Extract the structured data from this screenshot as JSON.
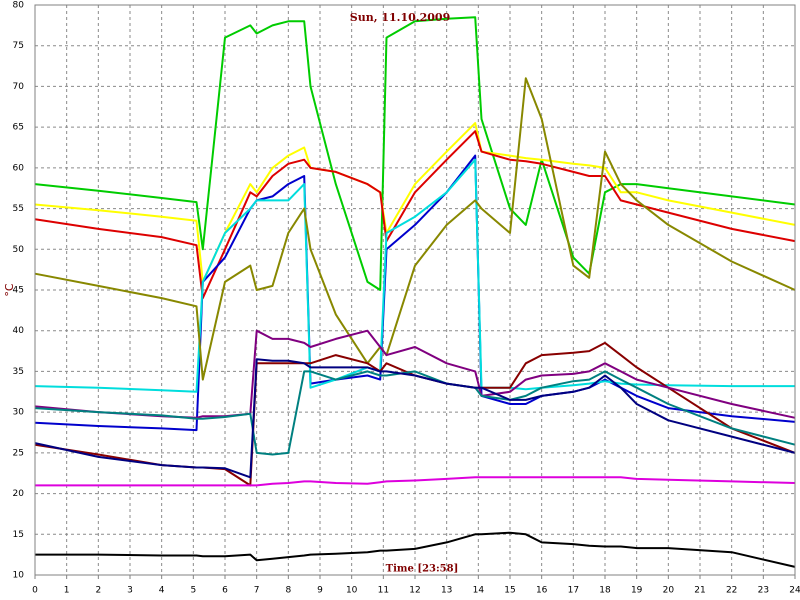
{
  "chart_data": {
    "type": "line",
    "title": "Sun, 11.10.2009",
    "xlabel": "Time [23:58]",
    "ylabel": "°C",
    "xlim": [
      0,
      24
    ],
    "xticks": [
      0,
      1,
      2,
      3,
      4,
      5,
      6,
      7,
      8,
      9,
      10,
      11,
      12,
      13,
      14,
      15,
      16,
      17,
      18,
      19,
      20,
      21,
      22,
      23,
      24
    ],
    "ylim": [
      10,
      80
    ],
    "yticks": [
      10,
      15,
      20,
      25,
      30,
      35,
      40,
      45,
      50,
      55,
      60,
      65,
      70,
      75,
      80
    ],
    "grid": true,
    "x": [
      0,
      2,
      4,
      5.1,
      5.3,
      6,
      6.8,
      7,
      7.5,
      8,
      8.5,
      8.7,
      9.5,
      10.5,
      10.9,
      11.1,
      12,
      13,
      13.9,
      14.1,
      15,
      15.5,
      16,
      17,
      17.5,
      18,
      18.5,
      19,
      20,
      22,
      24
    ],
    "series": [
      {
        "color": "#00cc00",
        "values": [
          58,
          57.2,
          56.3,
          55.8,
          50,
          76,
          77.5,
          76.5,
          77.5,
          78,
          78,
          70,
          58,
          46,
          45,
          76,
          78,
          78.3,
          78.5,
          66,
          55,
          53,
          61,
          49,
          47,
          57,
          58,
          58,
          57.5,
          56.5,
          55.5
        ]
      },
      {
        "color": "#ffff00",
        "values": [
          55.5,
          54.8,
          54,
          53.5,
          46,
          52,
          58,
          57,
          60,
          61.5,
          62.5,
          60,
          59.5,
          58,
          57,
          52,
          58,
          62,
          65.5,
          62,
          61.5,
          61.2,
          61,
          60.5,
          60.3,
          60,
          57,
          57,
          56,
          54.5,
          53
        ]
      },
      {
        "color": "#dd0000",
        "values": [
          53.7,
          52.5,
          51.5,
          50.5,
          44,
          50,
          57,
          56.5,
          59,
          60.5,
          61,
          60,
          59.5,
          58,
          57,
          51,
          57,
          61,
          64.5,
          62,
          61,
          60.8,
          60.5,
          59.5,
          59,
          59,
          56,
          55.5,
          54.5,
          52.5,
          51
        ]
      },
      {
        "color": "#0000cc",
        "values": [
          28.7,
          28.3,
          28,
          27.8,
          46,
          49,
          55,
          56,
          56.5,
          58,
          59,
          33.5,
          34,
          34.5,
          34,
          50,
          53,
          57,
          61.5,
          32,
          31,
          31,
          32,
          32.5,
          33,
          34,
          33,
          32,
          30.5,
          29.5,
          28.8
        ]
      },
      {
        "color": "#00dddd",
        "values": [
          33.2,
          33,
          32.7,
          32.5,
          46,
          52,
          55,
          56,
          56,
          56,
          58,
          33,
          34,
          35.5,
          35,
          52,
          54,
          57,
          61,
          33,
          33,
          32.8,
          33,
          33.3,
          33.5,
          33.8,
          33.5,
          33.4,
          33.3,
          33.2,
          33.2
        ]
      },
      {
        "color": "#888800",
        "values": [
          47,
          45.5,
          44,
          43,
          34,
          46,
          48,
          45,
          45.5,
          52,
          55,
          50,
          42,
          36,
          38,
          37,
          48,
          53,
          56,
          55,
          52,
          71,
          66,
          48,
          46.5,
          62,
          58,
          56,
          53,
          48.5,
          45
        ]
      },
      {
        "color": "#880000",
        "values": [
          26,
          24.8,
          23.5,
          23.2,
          23.2,
          23,
          21,
          36,
          36,
          36,
          36,
          36,
          37,
          36,
          35,
          36,
          34.5,
          33.5,
          33,
          33,
          33,
          36,
          37,
          37.3,
          37.5,
          38.5,
          37,
          35.5,
          33,
          28,
          25
        ]
      },
      {
        "color": "#800080",
        "values": [
          30.7,
          30,
          29.5,
          29.3,
          29.5,
          29.5,
          29.8,
          40,
          39,
          39,
          38.5,
          38,
          39,
          40,
          38,
          37,
          38,
          36,
          35,
          32,
          32.5,
          34,
          34.5,
          34.7,
          35,
          36,
          35,
          34,
          33,
          31,
          29.3
        ]
      },
      {
        "color": "#008080",
        "values": [
          30.5,
          30,
          29.6,
          29.2,
          29.2,
          29.4,
          29.8,
          25,
          24.8,
          25,
          35,
          35,
          34,
          35,
          34.5,
          34.5,
          35,
          33.5,
          33,
          32,
          31.5,
          32,
          33,
          33.8,
          34,
          35,
          34,
          33,
          31,
          28,
          26
        ]
      },
      {
        "color": "#000080",
        "values": [
          26.2,
          24.5,
          23.5,
          23.2,
          23.2,
          23.1,
          22,
          36.5,
          36.3,
          36.3,
          36,
          35.5,
          35.5,
          35.5,
          35,
          35,
          34.5,
          33.5,
          33,
          33,
          31.5,
          31.5,
          32,
          32.5,
          33,
          34.5,
          33,
          31,
          29,
          27,
          25
        ]
      },
      {
        "color": "#dd00dd",
        "values": [
          21,
          21,
          21,
          21,
          21,
          21,
          21,
          21,
          21.2,
          21.3,
          21.5,
          21.5,
          21.3,
          21.2,
          21.4,
          21.5,
          21.6,
          21.8,
          22,
          22,
          22,
          22,
          22,
          22,
          22,
          22,
          22,
          21.8,
          21.7,
          21.5,
          21.3
        ]
      },
      {
        "color": "#000000",
        "values": [
          12.5,
          12.5,
          12.4,
          12.4,
          12.3,
          12.3,
          12.5,
          11.8,
          12,
          12.2,
          12.4,
          12.5,
          12.6,
          12.8,
          13,
          13,
          13.2,
          14,
          15,
          15,
          15.2,
          15,
          14,
          13.8,
          13.6,
          13.5,
          13.5,
          13.3,
          13.3,
          12.8,
          11
        ]
      }
    ]
  }
}
